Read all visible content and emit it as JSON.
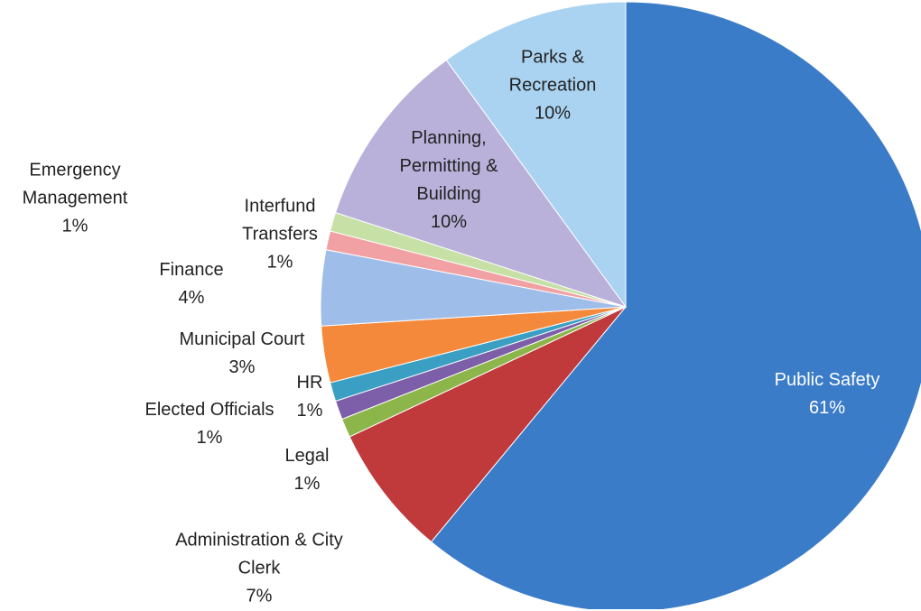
{
  "chart_data": {
    "type": "pie",
    "categories": [
      "Public Safety",
      "Administration & City Clerk",
      "Legal",
      "Elected Officials",
      "HR",
      "Municipal Court",
      "Finance",
      "Interfund Transfers",
      "Emergency Management",
      "Planning, Permitting & Building",
      "Parks & Recreation"
    ],
    "values": [
      61,
      7,
      1,
      1,
      1,
      3,
      4,
      1,
      1,
      10,
      10
    ],
    "value_labels": [
      "61%",
      "7%",
      "1%",
      "1%",
      "1%",
      "3%",
      "4%",
      "1%",
      "1%",
      "10%",
      "10%"
    ],
    "colors": [
      "#3b7cc8",
      "#c0393b",
      "#8cb54a",
      "#7c5fa8",
      "#3a9fc3",
      "#f5893b",
      "#9fbde9",
      "#f1a1a3",
      "#c6e0a6",
      "#b9b1da",
      "#aad3f1"
    ]
  }
}
